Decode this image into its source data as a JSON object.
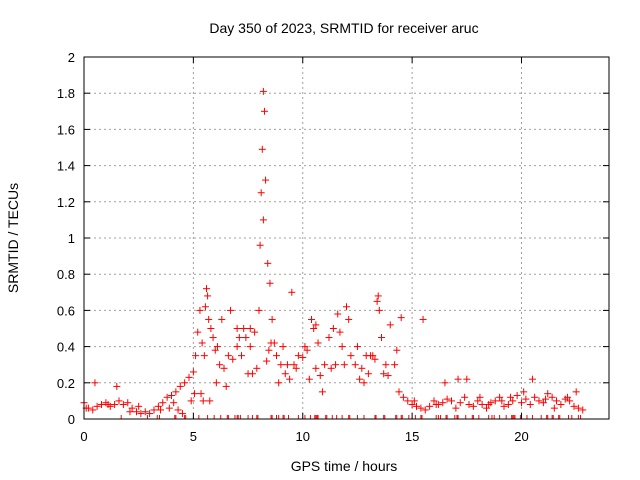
{
  "chart_data": {
    "type": "scatter",
    "title": "Day 350 of 2023, SRMTID for receiver aruc",
    "xlabel": "GPS time / hours",
    "ylabel": "SRMTID / TECUs",
    "xlim": [
      0,
      24
    ],
    "ylim": [
      0,
      2
    ],
    "xticks": [
      0,
      5,
      10,
      15,
      20
    ],
    "yticks": [
      0,
      0.2,
      0.4,
      0.6,
      0.8,
      1,
      1.2,
      1.4,
      1.6,
      1.8,
      2
    ],
    "grid": true,
    "marker": "plus",
    "color": "#ff0000",
    "series": [
      {
        "name": "SRMTID",
        "x": [
          0.0,
          0.2,
          0.4,
          0.6,
          0.8,
          1.0,
          1.2,
          1.4,
          1.6,
          1.8,
          2.0,
          2.2,
          2.4,
          2.6,
          2.8,
          3.0,
          3.2,
          3.4,
          3.6,
          3.8,
          4.0,
          4.2,
          4.4,
          4.6,
          4.8,
          5.0,
          5.1,
          5.2,
          5.3,
          5.4,
          5.5,
          5.55,
          5.6,
          5.65,
          5.7,
          5.8,
          5.9,
          6.0,
          6.1,
          6.2,
          6.4,
          6.6,
          6.8,
          7.0,
          7.2,
          7.4,
          7.6,
          7.8,
          8.0,
          8.05,
          8.1,
          8.15,
          8.2,
          8.25,
          8.3,
          8.4,
          8.5,
          8.6,
          8.7,
          8.8,
          9.0,
          9.2,
          9.4,
          9.6,
          9.8,
          10.0,
          10.2,
          10.4,
          10.5,
          10.6,
          10.8,
          11.0,
          11.2,
          11.4,
          11.6,
          11.8,
          12.0,
          12.2,
          12.4,
          12.6,
          12.8,
          13.0,
          13.2,
          13.4,
          13.5,
          13.6,
          13.8,
          14.0,
          14.2,
          14.4,
          14.6,
          14.8,
          15.0,
          15.2,
          15.4,
          15.6,
          15.8,
          16.0,
          16.2,
          16.4,
          16.6,
          16.8,
          17.0,
          17.2,
          17.4,
          17.6,
          17.8,
          18.0,
          18.2,
          18.4,
          18.6,
          18.8,
          19.0,
          19.2,
          19.4,
          19.6,
          19.8,
          20.0,
          20.2,
          20.4,
          20.6,
          20.8,
          21.0,
          21.2,
          21.4,
          21.6,
          21.8,
          22.0,
          22.2,
          22.4,
          22.6,
          22.8,
          0.1,
          1.1,
          2.1,
          3.9,
          4.3,
          4.9,
          5.35,
          5.75,
          6.3,
          6.7,
          7.1,
          7.5,
          7.9,
          8.45,
          8.9,
          9.5,
          10.1,
          10.7,
          11.3,
          11.9,
          12.5,
          13.1,
          13.7,
          14.3,
          15.5,
          16.5,
          17.5,
          18.5,
          19.5,
          20.5,
          21.5,
          22.5,
          0.5,
          1.5,
          2.5,
          3.5,
          4.1,
          4.5,
          5.05,
          5.45,
          6.05,
          6.5,
          7.3,
          7.7,
          8.35,
          8.55,
          9.1,
          9.7,
          10.3,
          10.9,
          11.5,
          12.1,
          12.7,
          13.3,
          13.9,
          14.5,
          15.1,
          16.1,
          17.1,
          18.1,
          19.1,
          20.1,
          21.1,
          22.1,
          7.0,
          7.6,
          8.2,
          9.3,
          10.6,
          11.7,
          12.9,
          13.45
        ],
        "y": [
          0.09,
          0.06,
          0.05,
          0.07,
          0.08,
          0.09,
          0.07,
          0.08,
          0.1,
          0.08,
          0.09,
          0.06,
          0.04,
          0.03,
          0.04,
          0.03,
          0.05,
          0.07,
          0.09,
          0.12,
          0.13,
          0.15,
          0.18,
          0.2,
          0.23,
          0.26,
          0.35,
          0.48,
          0.6,
          0.42,
          0.35,
          0.62,
          0.72,
          0.68,
          0.55,
          0.5,
          0.45,
          0.38,
          0.4,
          0.3,
          0.28,
          0.35,
          0.33,
          0.4,
          0.35,
          0.45,
          0.5,
          0.48,
          0.6,
          0.96,
          1.25,
          1.49,
          1.81,
          1.7,
          1.32,
          0.86,
          0.75,
          0.55,
          0.42,
          0.35,
          0.3,
          0.25,
          0.22,
          0.3,
          0.35,
          0.34,
          0.38,
          0.55,
          0.5,
          0.28,
          0.24,
          0.3,
          0.45,
          0.5,
          0.58,
          0.4,
          0.62,
          0.35,
          0.3,
          0.22,
          0.2,
          0.25,
          0.35,
          0.65,
          0.6,
          0.45,
          0.3,
          0.52,
          0.3,
          0.15,
          0.12,
          0.1,
          0.08,
          0.07,
          0.06,
          0.05,
          0.07,
          0.1,
          0.08,
          0.09,
          0.11,
          0.1,
          0.06,
          0.09,
          0.12,
          0.08,
          0.07,
          0.1,
          0.08,
          0.06,
          0.09,
          0.1,
          0.12,
          0.07,
          0.08,
          0.1,
          0.13,
          0.09,
          0.11,
          0.08,
          0.12,
          0.1,
          0.09,
          0.14,
          0.12,
          0.1,
          0.08,
          0.11,
          0.1,
          0.07,
          0.06,
          0.05,
          0.06,
          0.08,
          0.04,
          0.06,
          0.05,
          0.1,
          0.14,
          0.1,
          0.55,
          0.6,
          0.45,
          0.25,
          0.28,
          0.38,
          0.2,
          0.7,
          0.4,
          0.42,
          0.28,
          0.3,
          0.4,
          0.35,
          0.25,
          0.38,
          0.55,
          0.2,
          0.22,
          0.08,
          0.12,
          0.22,
          0.06,
          0.15,
          0.2,
          0.18,
          0.07,
          0.05,
          0.09,
          0.03,
          0.14,
          0.1,
          0.2,
          0.18,
          0.5,
          0.25,
          0.32,
          0.42,
          0.4,
          0.28,
          0.22,
          0.15,
          0.3,
          0.55,
          0.28,
          0.33,
          0.24,
          0.56,
          0.1,
          0.08,
          0.22,
          0.12,
          0.1,
          0.15,
          0.11,
          0.12,
          0.5,
          0.4,
          1.1,
          0.3,
          0.52,
          0.48,
          0.35,
          0.68
        ]
      }
    ],
    "floor_marks_x": [
      1.7,
      2.9,
      3.35,
      3.45,
      4.15,
      4.2,
      4.6,
      4.65,
      5.25,
      5.65,
      5.95,
      6.25,
      6.55,
      6.6,
      6.9,
      7.0,
      7.05,
      7.15,
      7.5,
      7.7,
      7.9,
      7.95,
      8.55,
      8.6,
      8.8,
      8.9,
      9.1,
      9.15,
      9.35,
      9.8,
      10.1,
      10.35,
      10.55,
      10.6,
      10.65,
      10.7,
      11.05,
      11.1,
      11.35,
      11.55,
      11.8,
      12.1,
      12.15,
      12.5,
      12.8,
      13.3,
      13.35,
      13.7,
      13.75,
      14.25,
      14.3,
      14.5,
      14.55,
      14.85,
      15.15,
      15.4,
      15.45,
      16.1,
      16.2,
      16.3,
      16.55,
      16.6,
      16.95,
      17.05,
      17.1,
      17.45,
      17.75,
      17.8,
      18.05,
      18.5,
      18.65,
      18.75,
      19.0,
      19.3,
      19.55,
      19.6,
      19.65,
      19.7,
      19.95,
      20.25,
      20.5,
      20.9,
      21.15,
      21.2,
      21.4,
      21.45,
      21.7,
      21.75,
      22.15,
      22.3,
      22.6,
      22.7
    ]
  }
}
